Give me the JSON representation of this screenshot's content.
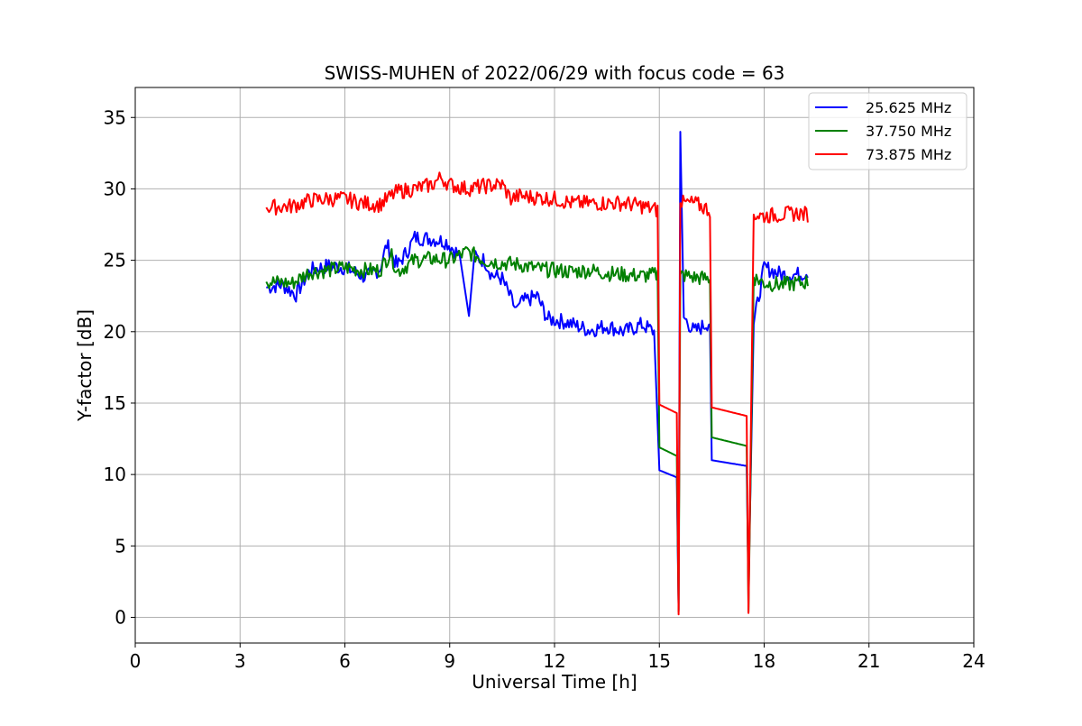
{
  "chart_data": {
    "type": "line",
    "title": "SWISS-MUHEN of 2022/06/29 with focus code = 63",
    "xlabel": "Universal Time [h]",
    "ylabel": "Y-factor [dB]",
    "xlim": [
      0,
      24
    ],
    "ylim": [
      -1.8,
      37.1
    ],
    "xticks": [
      0,
      3,
      6,
      9,
      12,
      15,
      18,
      21,
      24
    ],
    "yticks": [
      0,
      5,
      10,
      15,
      20,
      25,
      30,
      35
    ],
    "grid": true,
    "legend_position": "top-right",
    "series": [
      {
        "name": "25.625 MHz",
        "color": "#0000ff",
        "points": [
          [
            3.75,
            23.1
          ],
          [
            4.2,
            23.3
          ],
          [
            4.6,
            22.6
          ],
          [
            5.0,
            24.3
          ],
          [
            5.5,
            24.6
          ],
          [
            6.0,
            24.5
          ],
          [
            6.6,
            23.8
          ],
          [
            7.0,
            24.4
          ],
          [
            7.2,
            26.1
          ],
          [
            7.5,
            24.6
          ],
          [
            7.8,
            25.7
          ],
          [
            8.0,
            26.6
          ],
          [
            8.5,
            26.5
          ],
          [
            8.9,
            26.3
          ],
          [
            9.3,
            25.3
          ],
          [
            9.55,
            21.1
          ],
          [
            9.7,
            25.2
          ],
          [
            10.0,
            25.0
          ],
          [
            10.2,
            24.0
          ],
          [
            10.5,
            23.7
          ],
          [
            10.9,
            21.5
          ],
          [
            11.0,
            22.0
          ],
          [
            11.5,
            22.5
          ],
          [
            11.8,
            20.9
          ],
          [
            12.3,
            20.7
          ],
          [
            13.0,
            20.1
          ],
          [
            13.5,
            20.4
          ],
          [
            14.0,
            20.0
          ],
          [
            14.5,
            20.5
          ],
          [
            14.85,
            20.0
          ],
          [
            15.0,
            10.3
          ],
          [
            15.5,
            9.8
          ],
          [
            15.55,
            0.5
          ],
          [
            15.6,
            34.0
          ],
          [
            15.7,
            21.0
          ],
          [
            16.0,
            20.0
          ],
          [
            16.45,
            20.7
          ],
          [
            16.5,
            11.0
          ],
          [
            17.5,
            10.6
          ],
          [
            17.55,
            2.0
          ],
          [
            17.7,
            20.5
          ],
          [
            18.0,
            24.5
          ],
          [
            18.5,
            24.0
          ],
          [
            19.0,
            24.0
          ],
          [
            19.25,
            24.2
          ]
        ]
      },
      {
        "name": "37.750 MHz",
        "color": "#008000",
        "points": [
          [
            3.75,
            23.5
          ],
          [
            4.5,
            23.4
          ],
          [
            5.0,
            24.2
          ],
          [
            5.5,
            24.3
          ],
          [
            6.0,
            24.5
          ],
          [
            6.5,
            24.3
          ],
          [
            7.0,
            24.3
          ],
          [
            7.3,
            25.5
          ],
          [
            7.5,
            24.2
          ],
          [
            8.0,
            25.0
          ],
          [
            8.5,
            25.1
          ],
          [
            9.0,
            25.0
          ],
          [
            9.5,
            25.6
          ],
          [
            10.0,
            25.0
          ],
          [
            10.5,
            24.8
          ],
          [
            11.0,
            24.7
          ],
          [
            11.5,
            24.4
          ],
          [
            12.0,
            24.3
          ],
          [
            12.5,
            24.2
          ],
          [
            13.0,
            24.3
          ],
          [
            13.5,
            24.1
          ],
          [
            14.0,
            24.0
          ],
          [
            14.5,
            23.9
          ],
          [
            14.95,
            24.0
          ],
          [
            15.0,
            11.9
          ],
          [
            15.5,
            11.3
          ],
          [
            15.55,
            0.4
          ],
          [
            15.6,
            24.0
          ],
          [
            16.0,
            23.8
          ],
          [
            16.45,
            23.7
          ],
          [
            16.5,
            12.6
          ],
          [
            17.5,
            12.0
          ],
          [
            17.55,
            0.4
          ],
          [
            17.7,
            23.8
          ],
          [
            18.0,
            23.4
          ],
          [
            18.5,
            23.3
          ],
          [
            19.0,
            23.4
          ],
          [
            19.25,
            23.5
          ]
        ]
      },
      {
        "name": "73.875 MHz",
        "color": "#ff0000",
        "points": [
          [
            3.75,
            28.7
          ],
          [
            4.5,
            28.8
          ],
          [
            5.0,
            29.2
          ],
          [
            5.5,
            29.3
          ],
          [
            6.0,
            29.3
          ],
          [
            6.5,
            29.0
          ],
          [
            7.0,
            28.9
          ],
          [
            7.5,
            29.8
          ],
          [
            8.0,
            30.0
          ],
          [
            8.5,
            30.3
          ],
          [
            8.75,
            30.8
          ],
          [
            9.0,
            30.3
          ],
          [
            9.5,
            30.0
          ],
          [
            10.0,
            30.2
          ],
          [
            10.5,
            30.3
          ],
          [
            10.75,
            29.3
          ],
          [
            11.0,
            29.5
          ],
          [
            11.5,
            29.4
          ],
          [
            12.0,
            29.3
          ],
          [
            12.5,
            29.0
          ],
          [
            13.0,
            29.0
          ],
          [
            13.5,
            29.0
          ],
          [
            14.0,
            29.0
          ],
          [
            14.5,
            28.8
          ],
          [
            14.95,
            28.5
          ],
          [
            15.0,
            14.9
          ],
          [
            15.5,
            14.3
          ],
          [
            15.55,
            0.2
          ],
          [
            15.6,
            29.0
          ],
          [
            16.0,
            29.0
          ],
          [
            16.45,
            28.5
          ],
          [
            16.5,
            14.7
          ],
          [
            17.5,
            14.1
          ],
          [
            17.55,
            0.3
          ],
          [
            17.7,
            28.2
          ],
          [
            18.0,
            28.1
          ],
          [
            18.5,
            28.2
          ],
          [
            19.0,
            28.3
          ],
          [
            19.25,
            28.2
          ]
        ]
      }
    ]
  }
}
